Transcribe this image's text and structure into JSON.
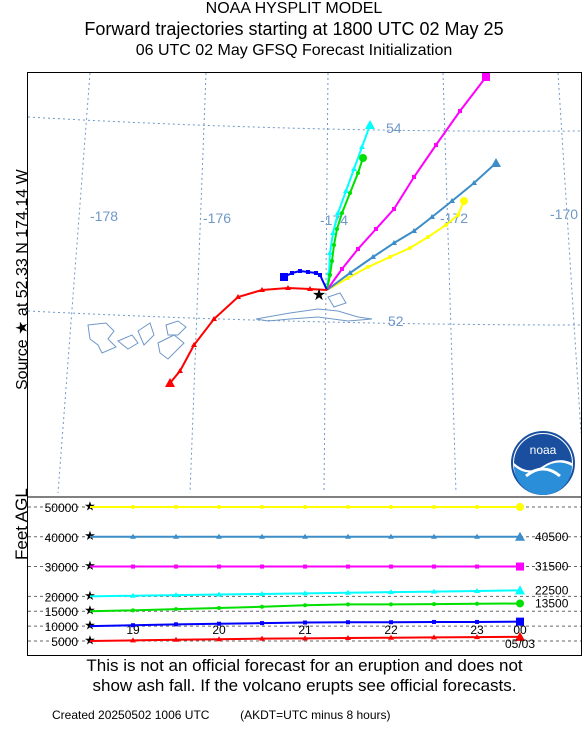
{
  "header": {
    "model": "NOAA HYSPLIT MODEL",
    "title": "Forward trajectories starting at 1800 UTC 02 May 25",
    "subtitle": "06 UTC 02 May    GFSQ  Forecast Initialization"
  },
  "source_label": "Source ★ at  52.33 N  174.14 W",
  "y_axis_label": "Feet AGL",
  "map": {
    "longitude_labels": [
      "-178",
      "-176",
      "-174",
      "-172",
      "-170"
    ],
    "latitude_labels": [
      "54",
      "52"
    ]
  },
  "logo_text": "noaa",
  "chart_data": {
    "type": "line",
    "title": "Forward trajectories starting at 1800 UTC 02 May 25",
    "x_tick_labels": [
      "19",
      "20",
      "21",
      "22",
      "23",
      "00"
    ],
    "x_sub_label": "05/03",
    "y_tick_labels": [
      "50000",
      "40000",
      "30000",
      "20000",
      "15000",
      "10000",
      "5000"
    ],
    "y_ticks": [
      50000,
      40000,
      30000,
      20000,
      15000,
      10000,
      5000
    ],
    "hours": [
      0,
      3,
      6,
      9,
      12,
      15,
      18,
      21,
      24,
      27,
      30
    ],
    "ylim": [
      5000,
      50000
    ],
    "right_labels": [
      "40500",
      "31500",
      "22500",
      "13500"
    ],
    "series": [
      {
        "color": "#ffff00",
        "marker": "circle",
        "heights": [
          50000,
          50000,
          50000,
          50000,
          50000,
          50000,
          50000,
          50000,
          50000,
          50000,
          50000
        ]
      },
      {
        "color": "#3c8dc8",
        "marker": "triangle",
        "heights": [
          40000,
          40000,
          40000,
          40000,
          40000,
          40000,
          40000,
          40000,
          40000,
          40000,
          40000
        ]
      },
      {
        "color": "#ff00ff",
        "marker": "square",
        "heights": [
          30000,
          30000,
          30000,
          30000,
          30000,
          30000,
          30000,
          30000,
          30000,
          30000,
          30000
        ]
      },
      {
        "color": "#00ffff",
        "marker": "triangle",
        "heights": [
          20000,
          20200,
          20400,
          20600,
          20800,
          21000,
          21200,
          21400,
          21600,
          21800,
          22000
        ]
      },
      {
        "color": "#00e000",
        "marker": "circle",
        "heights": [
          15000,
          15300,
          15700,
          16100,
          16500,
          17000,
          17300,
          17300,
          17400,
          17500,
          17600
        ]
      },
      {
        "color": "#0000ff",
        "marker": "square",
        "heights": [
          10000,
          10300,
          10600,
          10800,
          11000,
          11200,
          11300,
          11300,
          11400,
          11400,
          11500
        ]
      },
      {
        "color": "#ff0000",
        "marker": "triangle",
        "heights": [
          5000,
          5200,
          5400,
          5600,
          5800,
          5900,
          6000,
          6100,
          6200,
          6300,
          6400
        ]
      }
    ]
  },
  "disclaimer": {
    "line1": "This is not an official forecast for an eruption and does not",
    "line2": "show ash fall. If the volcano erupts see official forecasts."
  },
  "footer": {
    "created": "Created 20250502 1006 UTC",
    "timezone": "(AKDT=UTC minus 8 hours)"
  }
}
